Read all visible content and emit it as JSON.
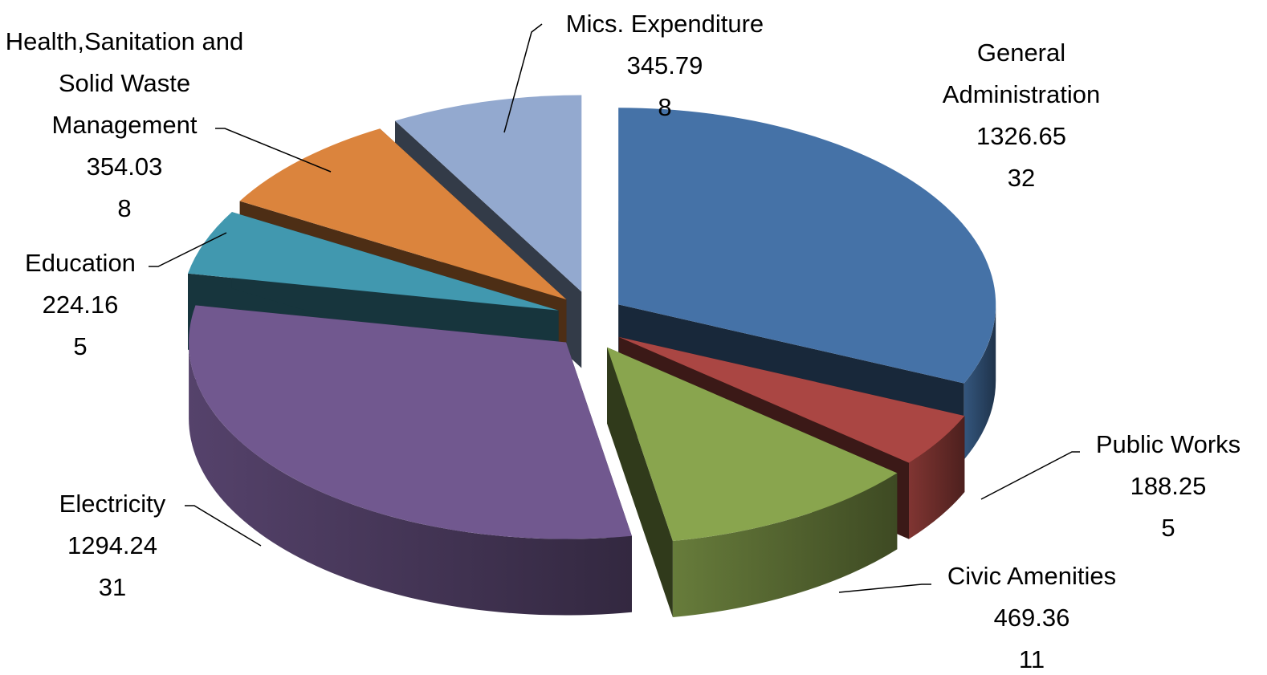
{
  "chart_data": {
    "type": "pie3d",
    "categories": [
      "General Administration",
      "Public Works",
      "Civic Amenities",
      "Electricity",
      "Education",
      "Health,Sanitation and Solid Waste Management",
      "Mics. Expenditure"
    ],
    "values": [
      1326.65,
      188.25,
      469.36,
      1294.24,
      224.16,
      354.03,
      345.79
    ],
    "percents": [
      32,
      5,
      11,
      31,
      5,
      8,
      8
    ],
    "colors": [
      "#4572a7",
      "#aa4643",
      "#89a54e",
      "#71588f",
      "#4198af",
      "#db843d",
      "#93a9cf"
    ]
  }
}
